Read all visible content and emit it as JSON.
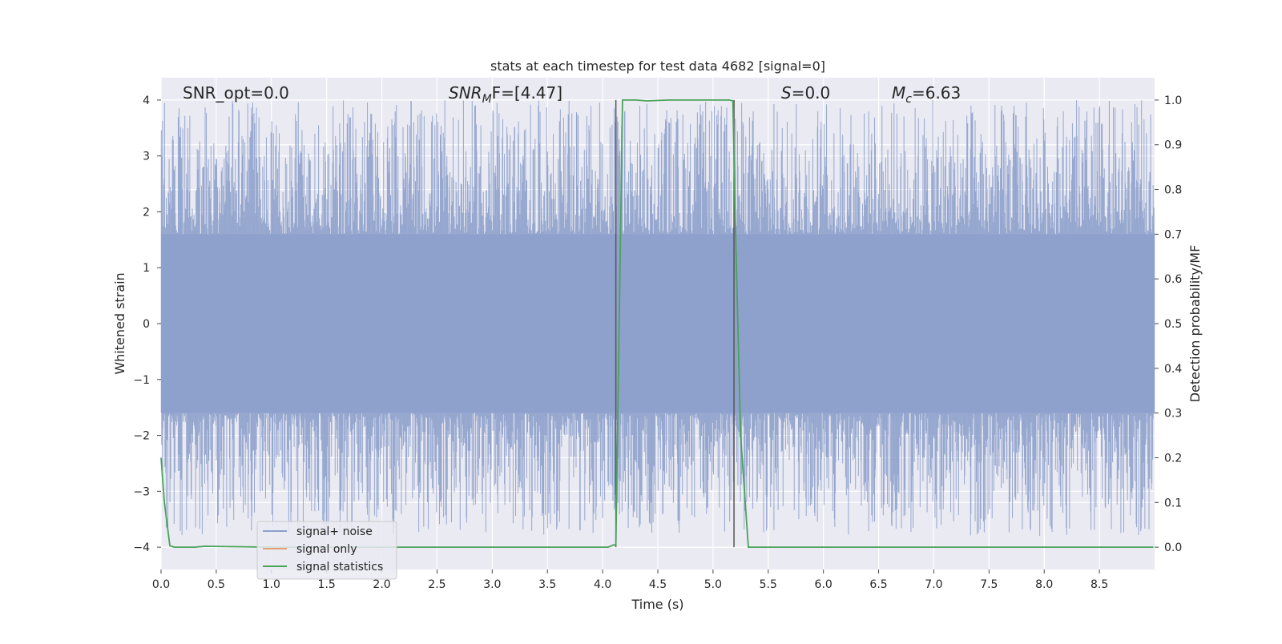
{
  "chart_data": {
    "type": "line",
    "title": "stats at each timestep for test data 4682 [signal=0]",
    "xlabel": "Time (s)",
    "ylabel_left": "Whitened strain",
    "ylabel_right": "Detection probability/MF",
    "xlim": [
      0.0,
      9.0
    ],
    "ylim_left": [
      -4.4,
      4.4
    ],
    "ylim_right": [
      -0.05,
      1.05
    ],
    "xticks": [
      "0.0",
      "0.5",
      "1.0",
      "1.5",
      "2.0",
      "2.5",
      "3.0",
      "3.5",
      "4.0",
      "4.5",
      "5.0",
      "5.5",
      "6.0",
      "6.5",
      "7.0",
      "7.5",
      "8.0",
      "8.5"
    ],
    "yticks_left": [
      "4",
      "3",
      "2",
      "1",
      "0",
      "−1",
      "−2",
      "−3",
      "−4"
    ],
    "yticks_right": [
      "1.0",
      "0.9",
      "0.8",
      "0.7",
      "0.6",
      "0.5",
      "0.4",
      "0.3",
      "0.2",
      "0.1",
      "0.0"
    ],
    "grid": true,
    "legend_position": "bottom-left",
    "annotations": {
      "snr_opt": "SNR_opt=0.0",
      "snr_mf_prefix": "SNR",
      "snr_mf_sub": "M",
      "snr_mf_suffix": "F=[4.47]",
      "s_var": "S",
      "s_val": "=0.0",
      "mc_var": "M",
      "mc_sub": "c",
      "mc_val": "=6.63"
    },
    "colors": {
      "signal_noise": "#8da0cb",
      "signal_only": "#e5a173",
      "signal_statistics": "#4aa359",
      "vlines": "#555555",
      "background": "#eaeaf2"
    },
    "series": [
      {
        "name": "signal+ noise",
        "axis": "left",
        "description_type": "noise band",
        "core_range": [
          -1.6,
          1.6
        ],
        "spike_range": [
          -3.8,
          4.0
        ]
      },
      {
        "name": "signal only",
        "axis": "left",
        "x": [],
        "y": []
      },
      {
        "name": "signal statistics",
        "axis": "right",
        "x": [
          0.0,
          0.03,
          0.08,
          0.12,
          0.3,
          0.4,
          1.0,
          2.0,
          3.0,
          4.0,
          4.05,
          4.1,
          4.12,
          4.18,
          4.3,
          4.4,
          4.6,
          5.0,
          5.15,
          5.18,
          5.2,
          5.25,
          5.32,
          5.4,
          6.0,
          7.0,
          8.0,
          8.99
        ],
        "y": [
          0.2,
          0.1,
          0.003,
          0.0,
          0.0,
          0.002,
          0.0,
          0.0,
          0.0,
          0.0,
          0.0,
          0.005,
          0.005,
          1.0,
          1.0,
          0.998,
          1.0,
          1.0,
          1.0,
          0.998,
          0.75,
          0.25,
          0.0,
          0.0,
          0.0,
          0.0,
          0.0,
          0.0
        ]
      }
    ],
    "vertical_lines": [
      {
        "x": 4.12,
        "y_range": [
          0.0,
          1.0
        ]
      },
      {
        "x": 5.19,
        "y_range": [
          0.0,
          1.0
        ]
      }
    ]
  }
}
